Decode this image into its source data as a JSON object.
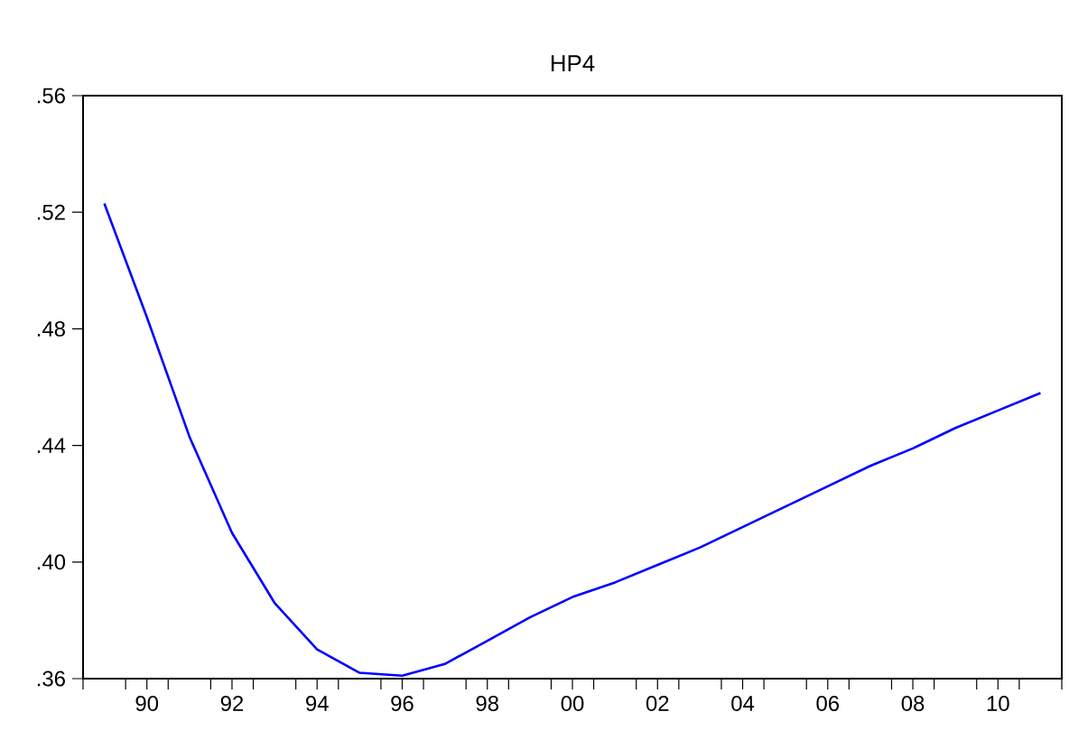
{
  "chart_data": {
    "type": "line",
    "title": "HP4",
    "color": "#0000ff",
    "x": [
      1989,
      1990,
      1991,
      1992,
      1993,
      1994,
      1995,
      1996,
      1997,
      1998,
      1999,
      2000,
      2001,
      2002,
      2003,
      2004,
      2005,
      2006,
      2007,
      2008,
      2009,
      2010,
      2011
    ],
    "values": [
      0.523,
      0.484,
      0.443,
      0.41,
      0.386,
      0.37,
      0.362,
      0.361,
      0.365,
      0.373,
      0.381,
      0.388,
      0.393,
      0.399,
      0.405,
      0.412,
      0.419,
      0.426,
      0.433,
      0.439,
      0.446,
      0.452,
      0.458
    ],
    "xlim": [
      1988.5,
      2011.5
    ],
    "xticks": [
      {
        "value": 1988.5,
        "label": null
      },
      {
        "value": 1989.5,
        "label": null
      },
      {
        "value": 1990,
        "label": "90"
      },
      {
        "value": 1990.5,
        "label": null
      },
      {
        "value": 1991.5,
        "label": null
      },
      {
        "value": 1992,
        "label": "92"
      },
      {
        "value": 1992.5,
        "label": null
      },
      {
        "value": 1993.5,
        "label": null
      },
      {
        "value": 1994,
        "label": "94"
      },
      {
        "value": 1994.5,
        "label": null
      },
      {
        "value": 1995.5,
        "label": null
      },
      {
        "value": 1996,
        "label": "96"
      },
      {
        "value": 1996.5,
        "label": null
      },
      {
        "value": 1997.5,
        "label": null
      },
      {
        "value": 1998,
        "label": "98"
      },
      {
        "value": 1998.5,
        "label": null
      },
      {
        "value": 1999.5,
        "label": null
      },
      {
        "value": 2000,
        "label": "00"
      },
      {
        "value": 2000.5,
        "label": null
      },
      {
        "value": 2001.5,
        "label": null
      },
      {
        "value": 2002,
        "label": "02"
      },
      {
        "value": 2002.5,
        "label": null
      },
      {
        "value": 2003.5,
        "label": null
      },
      {
        "value": 2004,
        "label": "04"
      },
      {
        "value": 2004.5,
        "label": null
      },
      {
        "value": 2005.5,
        "label": null
      },
      {
        "value": 2006,
        "label": "06"
      },
      {
        "value": 2006.5,
        "label": null
      },
      {
        "value": 2007.5,
        "label": null
      },
      {
        "value": 2008,
        "label": "08"
      },
      {
        "value": 2008.5,
        "label": null
      },
      {
        "value": 2009.5,
        "label": null
      },
      {
        "value": 2010,
        "label": "10"
      },
      {
        "value": 2010.5,
        "label": null
      },
      {
        "value": 2011.5,
        "label": null
      }
    ],
    "ylim": [
      0.36,
      0.56
    ],
    "yticks": [
      {
        "value": 0.36,
        "label": ".36"
      },
      {
        "value": 0.4,
        "label": ".40"
      },
      {
        "value": 0.44,
        "label": ".44"
      },
      {
        "value": 0.48,
        "label": ".48"
      },
      {
        "value": 0.52,
        "label": ".52"
      },
      {
        "value": 0.56,
        "label": ".56"
      }
    ]
  }
}
